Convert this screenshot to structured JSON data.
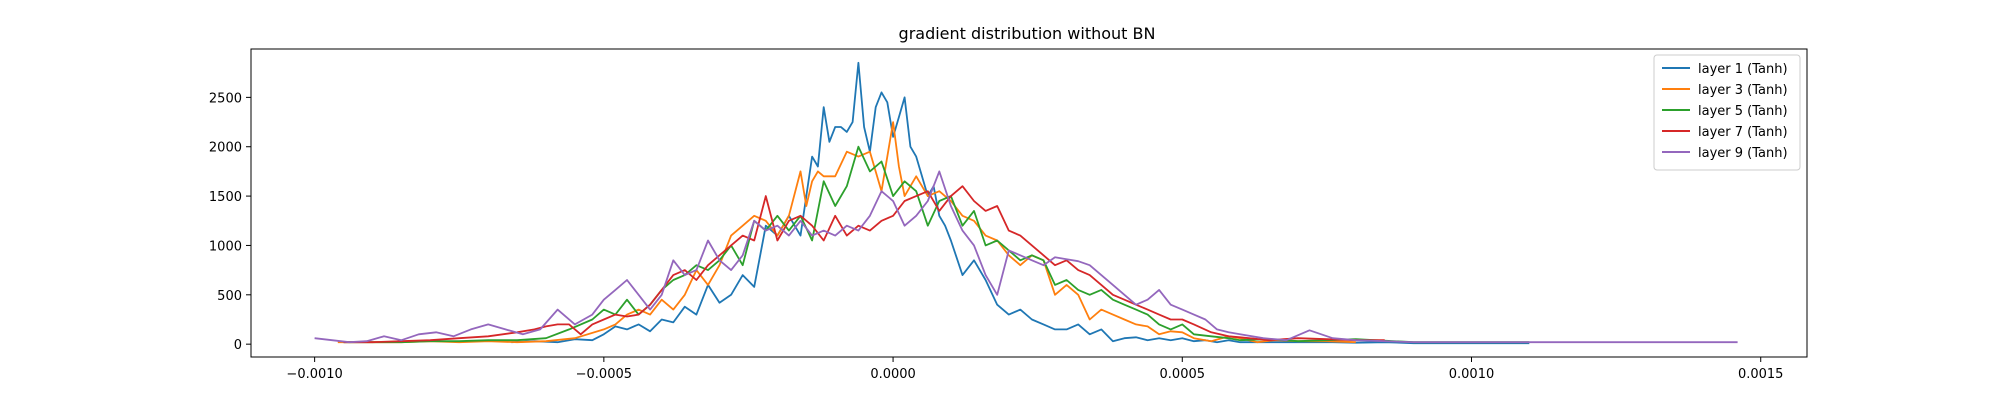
{
  "chart_data": {
    "type": "line",
    "title": "gradient distribution without BN",
    "xlabel": "",
    "ylabel": "",
    "xlim": [
      -0.00111,
      0.00158
    ],
    "ylim": [
      -130,
      2990
    ],
    "xticks": [
      -0.001,
      -0.0005,
      0.0,
      0.0005,
      0.001,
      0.0015
    ],
    "xtick_labels": [
      "−0.0010",
      "−0.0005",
      "0.0000",
      "0.0005",
      "0.0010",
      "0.0015"
    ],
    "yticks": [
      0,
      500,
      1000,
      1500,
      2000,
      2500
    ],
    "ytick_labels": [
      "0",
      "500",
      "1000",
      "1500",
      "2000",
      "2500"
    ],
    "grid": false,
    "legend_position": "top-right",
    "series": [
      {
        "name": "layer 1 (Tanh)",
        "color": "#1f77b4",
        "x": [
          -0.00066,
          -0.00062,
          -0.00058,
          -0.00055,
          -0.00052,
          -0.0005,
          -0.00048,
          -0.00046,
          -0.00044,
          -0.00042,
          -0.0004,
          -0.00038,
          -0.00036,
          -0.00034,
          -0.00032,
          -0.0003,
          -0.00028,
          -0.00026,
          -0.00024,
          -0.00022,
          -0.0002,
          -0.00018,
          -0.00016,
          -0.00014,
          -0.00013,
          -0.00012,
          -0.00011,
          -0.0001,
          -9e-05,
          -8e-05,
          -7e-05,
          -6e-05,
          -5e-05,
          -4e-05,
          -3e-05,
          -2e-05,
          -1e-05,
          0.0,
          1e-05,
          2e-05,
          3e-05,
          4e-05,
          5e-05,
          6e-05,
          7e-05,
          8e-05,
          9e-05,
          0.0001,
          0.00012,
          0.00014,
          0.00016,
          0.00018,
          0.0002,
          0.00022,
          0.00024,
          0.00026,
          0.00028,
          0.0003,
          0.00032,
          0.00034,
          0.00036,
          0.00038,
          0.0004,
          0.00042,
          0.00044,
          0.00046,
          0.00048,
          0.0005,
          0.00052,
          0.00054,
          0.00056,
          0.00058,
          0.0006,
          0.00064,
          0.00068,
          0.00072,
          0.00076,
          0.0008,
          0.00085,
          0.0009,
          0.00095,
          0.001,
          0.00105,
          0.0011
        ],
        "y": [
          20,
          30,
          20,
          50,
          40,
          100,
          180,
          150,
          200,
          130,
          250,
          220,
          380,
          300,
          600,
          420,
          500,
          700,
          580,
          1200,
          1100,
          1300,
          1100,
          1900,
          1800,
          2400,
          2050,
          2200,
          2200,
          2150,
          2250,
          2850,
          2200,
          1950,
          2400,
          2550,
          2450,
          2100,
          2300,
          2500,
          2000,
          1900,
          1700,
          1500,
          1600,
          1300,
          1200,
          1050,
          700,
          850,
          650,
          400,
          300,
          350,
          250,
          200,
          150,
          150,
          200,
          100,
          150,
          30,
          60,
          70,
          40,
          60,
          40,
          60,
          30,
          40,
          20,
          40,
          20,
          20,
          20,
          20,
          20,
          15,
          20,
          10,
          10,
          10,
          10,
          10
        ]
      },
      {
        "name": "layer 3 (Tanh)",
        "color": "#ff7f0e",
        "x": [
          -0.00096,
          -0.0009,
          -0.00085,
          -0.0008,
          -0.00075,
          -0.0007,
          -0.00065,
          -0.0006,
          -0.00055,
          -0.0005,
          -0.00048,
          -0.00046,
          -0.00044,
          -0.00042,
          -0.0004,
          -0.00038,
          -0.00036,
          -0.00034,
          -0.00032,
          -0.0003,
          -0.00028,
          -0.00026,
          -0.00024,
          -0.00022,
          -0.0002,
          -0.00018,
          -0.00016,
          -0.00015,
          -0.00014,
          -0.00013,
          -0.00012,
          -0.0001,
          -8e-05,
          -6e-05,
          -4e-05,
          -2e-05,
          0.0,
          1e-05,
          2e-05,
          4e-05,
          6e-05,
          8e-05,
          0.0001,
          0.00012,
          0.00014,
          0.00016,
          0.00018,
          0.0002,
          0.00022,
          0.00024,
          0.00026,
          0.00028,
          0.0003,
          0.00032,
          0.00034,
          0.00036,
          0.00038,
          0.0004,
          0.00042,
          0.00044,
          0.00046,
          0.00048,
          0.0005,
          0.00052,
          0.00055,
          0.00058,
          0.0006,
          0.00063,
          0.00066,
          0.0007,
          0.00075,
          0.0008
        ],
        "y": [
          20,
          20,
          20,
          30,
          20,
          30,
          20,
          30,
          60,
          150,
          200,
          300,
          350,
          300,
          450,
          350,
          500,
          750,
          600,
          800,
          1100,
          1200,
          1300,
          1250,
          1100,
          1300,
          1750,
          1400,
          1650,
          1750,
          1700,
          1700,
          1950,
          1900,
          1950,
          1550,
          2250,
          1800,
          1500,
          1700,
          1500,
          1550,
          1450,
          1300,
          1250,
          1100,
          1050,
          900,
          800,
          900,
          850,
          500,
          600,
          500,
          250,
          350,
          300,
          250,
          200,
          180,
          100,
          130,
          120,
          60,
          30,
          80,
          60,
          20,
          40,
          30,
          30,
          20
        ]
      },
      {
        "name": "layer 5 (Tanh)",
        "color": "#2ca02c",
        "x": [
          -0.00095,
          -0.0009,
          -0.00085,
          -0.0008,
          -0.00075,
          -0.0007,
          -0.00065,
          -0.0006,
          -0.00056,
          -0.00052,
          -0.0005,
          -0.00048,
          -0.00046,
          -0.00044,
          -0.00042,
          -0.0004,
          -0.00038,
          -0.00036,
          -0.00034,
          -0.00032,
          -0.0003,
          -0.00028,
          -0.00026,
          -0.00024,
          -0.00022,
          -0.0002,
          -0.00018,
          -0.00016,
          -0.00014,
          -0.00012,
          -0.0001,
          -8e-05,
          -6e-05,
          -4e-05,
          -2e-05,
          0.0,
          2e-05,
          4e-05,
          6e-05,
          8e-05,
          0.0001,
          0.00012,
          0.00014,
          0.00016,
          0.00018,
          0.0002,
          0.00022,
          0.00024,
          0.00026,
          0.00028,
          0.0003,
          0.00032,
          0.00034,
          0.00036,
          0.00038,
          0.0004,
          0.00042,
          0.00044,
          0.00046,
          0.00048,
          0.0005,
          0.00052,
          0.00055,
          0.00058,
          0.0006,
          0.00065,
          0.0007,
          0.00075,
          0.0008,
          0.0009,
          0.001,
          0.0011
        ],
        "y": [
          20,
          20,
          20,
          30,
          30,
          40,
          40,
          60,
          150,
          250,
          350,
          300,
          450,
          300,
          400,
          550,
          650,
          700,
          800,
          750,
          850,
          1000,
          800,
          1250,
          1150,
          1300,
          1150,
          1300,
          1050,
          1650,
          1400,
          1600,
          2000,
          1750,
          1850,
          1500,
          1650,
          1550,
          1200,
          1450,
          1500,
          1200,
          1350,
          1000,
          1050,
          950,
          850,
          900,
          850,
          600,
          650,
          550,
          500,
          550,
          450,
          400,
          350,
          300,
          200,
          150,
          200,
          100,
          80,
          60,
          40,
          50,
          30,
          40,
          50,
          20,
          20,
          20
        ]
      },
      {
        "name": "layer 7 (Tanh)",
        "color": "#d62728",
        "x": [
          -0.00095,
          -0.0009,
          -0.00085,
          -0.0008,
          -0.00075,
          -0.0007,
          -0.00065,
          -0.00062,
          -0.0006,
          -0.00058,
          -0.00056,
          -0.00054,
          -0.00052,
          -0.0005,
          -0.00048,
          -0.00046,
          -0.00044,
          -0.00042,
          -0.0004,
          -0.00038,
          -0.00036,
          -0.00034,
          -0.00032,
          -0.0003,
          -0.00028,
          -0.00026,
          -0.00024,
          -0.00022,
          -0.0002,
          -0.00018,
          -0.00016,
          -0.00014,
          -0.00012,
          -0.0001,
          -8e-05,
          -6e-05,
          -4e-05,
          -2e-05,
          0.0,
          2e-05,
          4e-05,
          6e-05,
          8e-05,
          0.0001,
          0.00012,
          0.00014,
          0.00016,
          0.00018,
          0.0002,
          0.00022,
          0.00024,
          0.00026,
          0.00028,
          0.0003,
          0.00032,
          0.00034,
          0.00036,
          0.00038,
          0.0004,
          0.00042,
          0.00044,
          0.00046,
          0.00048,
          0.0005,
          0.00052,
          0.00055,
          0.00058,
          0.0006,
          0.00065,
          0.0007,
          0.00075,
          0.0008,
          0.00085
        ],
        "y": [
          20,
          20,
          30,
          40,
          60,
          80,
          120,
          150,
          180,
          200,
          200,
          100,
          200,
          250,
          300,
          280,
          300,
          400,
          550,
          700,
          750,
          650,
          800,
          900,
          1000,
          1100,
          1050,
          1500,
          1050,
          1250,
          1300,
          1200,
          1050,
          1300,
          1100,
          1200,
          1150,
          1250,
          1300,
          1450,
          1500,
          1550,
          1350,
          1500,
          1600,
          1450,
          1350,
          1400,
          1150,
          1100,
          1000,
          900,
          800,
          850,
          750,
          700,
          600,
          500,
          450,
          400,
          350,
          300,
          250,
          250,
          200,
          120,
          80,
          70,
          40,
          60,
          50,
          40,
          40
        ]
      },
      {
        "name": "layer 9 (Tanh)",
        "color": "#9467bd",
        "x": [
          -0.001,
          -0.00097,
          -0.00094,
          -0.00091,
          -0.00088,
          -0.00085,
          -0.00082,
          -0.00079,
          -0.00076,
          -0.00073,
          -0.0007,
          -0.00067,
          -0.00064,
          -0.00061,
          -0.00058,
          -0.00055,
          -0.00052,
          -0.0005,
          -0.00048,
          -0.00046,
          -0.00044,
          -0.00042,
          -0.0004,
          -0.00038,
          -0.00036,
          -0.00034,
          -0.00032,
          -0.0003,
          -0.00028,
          -0.00026,
          -0.00024,
          -0.00022,
          -0.0002,
          -0.00018,
          -0.00016,
          -0.00014,
          -0.00012,
          -0.0001,
          -8e-05,
          -6e-05,
          -4e-05,
          -2e-05,
          0.0,
          2e-05,
          4e-05,
          6e-05,
          8e-05,
          0.0001,
          0.00012,
          0.00014,
          0.00016,
          0.00018,
          0.0002,
          0.00022,
          0.00024,
          0.00026,
          0.00028,
          0.0003,
          0.00032,
          0.00034,
          0.00036,
          0.00038,
          0.0004,
          0.00042,
          0.00044,
          0.00046,
          0.00048,
          0.0005,
          0.00052,
          0.00054,
          0.00056,
          0.00058,
          0.0006,
          0.00064,
          0.00068,
          0.00072,
          0.00076,
          0.0008,
          0.00085,
          0.0009,
          0.00095,
          0.001,
          0.0011,
          0.0012,
          0.0013,
          0.0014,
          0.00146
        ],
        "y": [
          60,
          40,
          20,
          30,
          80,
          40,
          100,
          120,
          80,
          150,
          200,
          150,
          100,
          150,
          350,
          200,
          300,
          450,
          550,
          650,
          500,
          350,
          500,
          850,
          700,
          750,
          1050,
          850,
          750,
          900,
          1250,
          1150,
          1200,
          1100,
          1250,
          1100,
          1150,
          1100,
          1200,
          1150,
          1300,
          1550,
          1450,
          1200,
          1300,
          1450,
          1750,
          1400,
          1150,
          1000,
          700,
          500,
          950,
          900,
          850,
          800,
          880,
          860,
          840,
          800,
          700,
          600,
          500,
          400,
          450,
          550,
          400,
          350,
          300,
          250,
          150,
          120,
          100,
          60,
          40,
          140,
          60,
          40,
          30,
          20,
          20,
          20,
          20,
          20,
          20,
          20,
          20
        ]
      }
    ]
  }
}
